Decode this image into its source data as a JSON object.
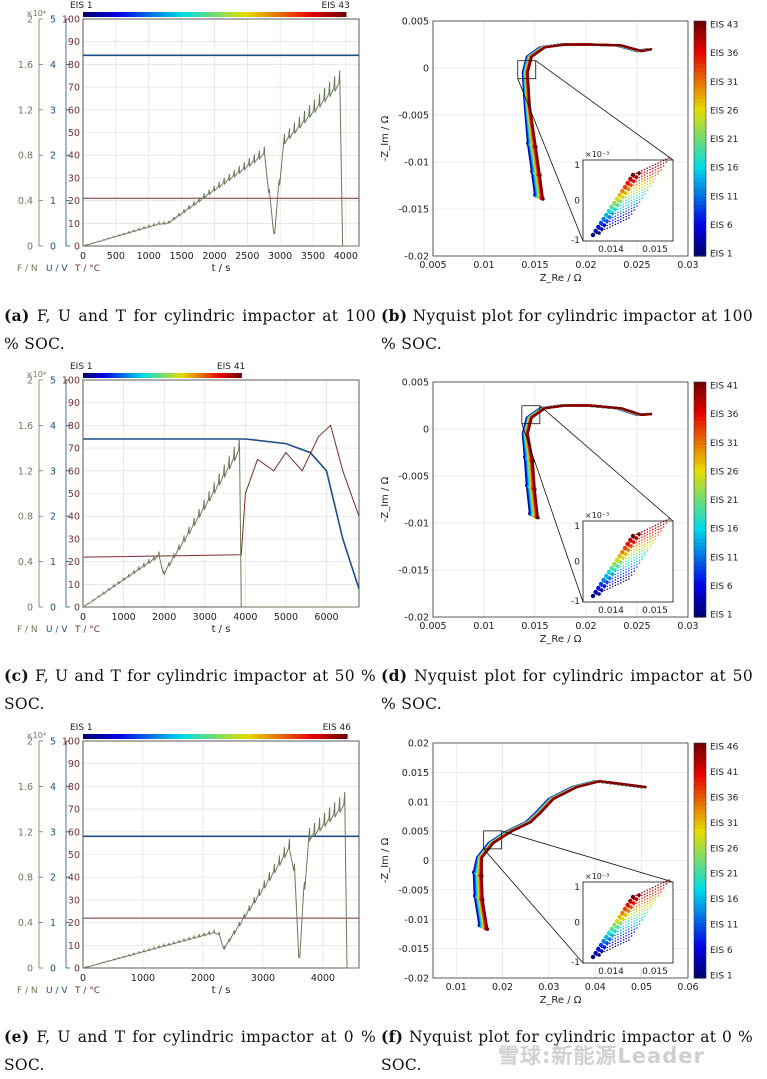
{
  "colors": {
    "force": "#6b7a5a",
    "voltage": "#1f4f8a",
    "temperature": "#7a2d2d",
    "axis": "#333333",
    "grid": "#dddddd"
  },
  "left_axes": {
    "force_label": "F / N",
    "voltage_label": "U / V",
    "temp_label": "T / °C",
    "force_exponent": "×10⁴",
    "force_ticks": [
      "0",
      "0.4",
      "0.8",
      "1.2",
      "1.6",
      "2"
    ],
    "voltage_ticks": [
      "0",
      "1",
      "2",
      "3",
      "4",
      "5"
    ],
    "temp_ticks": [
      "0",
      "10",
      "20",
      "30",
      "40",
      "50",
      "60",
      "70",
      "80",
      "90",
      "100"
    ],
    "xlabel": "t / s"
  },
  "nyquist_axes": {
    "xlabel": "Z_Re / Ω",
    "ylabel": "-Z_Im / Ω",
    "inset_exponent": "×10⁻³"
  },
  "chart_data": [
    {
      "id": "a",
      "type": "line",
      "title": "",
      "x": [
        0,
        4200
      ],
      "xticks": [
        0,
        500,
        1000,
        1500,
        2000,
        2500,
        3000,
        3500,
        4000
      ],
      "xlim": [
        0,
        4200
      ],
      "ylim_temp": [
        0,
        100
      ],
      "ylim_force": [
        0,
        20000
      ],
      "ylim_voltage": [
        0,
        5
      ],
      "eis_first": "EIS 1",
      "eis_last": "EIS 43",
      "eis_range_s": [
        0,
        4000
      ],
      "voltage": {
        "t": [
          0,
          4200
        ],
        "v": [
          4.2,
          4.2
        ]
      },
      "temperature": {
        "t": [
          0,
          4200
        ],
        "v": [
          21,
          21
        ]
      },
      "force_envelope": {
        "t": [
          0,
          1200,
          1250,
          2800,
          2850,
          2950,
          3000,
          3900,
          3950,
          4200
        ],
        "v": [
          0,
          2200,
          2000,
          9000,
          1200,
          1200,
          9500,
          15500,
          0,
          0
        ]
      }
    },
    {
      "id": "b",
      "type": "scatter",
      "title": "",
      "xlim": [
        0.005,
        0.03
      ],
      "ylim": [
        -0.02,
        0.005
      ],
      "xticks": [
        "0.005",
        "0.01",
        "0.015",
        "0.02",
        "0.025",
        "0.03"
      ],
      "yticks": [
        "0.005",
        "0",
        "-0.005",
        "-0.01",
        "-0.015",
        "-0.02"
      ],
      "inset_xticks": [
        "0.014",
        "0.015"
      ],
      "inset_yticks": [
        "1",
        "0",
        "-1"
      ],
      "colorbar": [
        "EIS 43",
        "EIS 36",
        "EIS 31",
        "EIS 26",
        "EIS 21",
        "EIS 16",
        "EIS 11",
        "EIS 6",
        "EIS 1"
      ],
      "curve": {
        "x": [
          0.015,
          0.0147,
          0.0143,
          0.014,
          0.0138,
          0.0142,
          0.0155,
          0.0175,
          0.02,
          0.023,
          0.025,
          0.026
        ],
        "y": [
          -0.0135,
          -0.011,
          -0.008,
          -0.004,
          -0.0005,
          0.0012,
          0.0022,
          0.0025,
          0.0025,
          0.0024,
          0.0018,
          0.002
        ]
      }
    },
    {
      "id": "c",
      "type": "line",
      "title": "",
      "x": [
        0,
        6800
      ],
      "xticks": [
        0,
        1000,
        2000,
        3000,
        4000,
        5000,
        6000
      ],
      "xlim": [
        0,
        6800
      ],
      "ylim_temp": [
        0,
        100
      ],
      "ylim_force": [
        0,
        20000
      ],
      "ylim_voltage": [
        0,
        5
      ],
      "eis_first": "EIS 1",
      "eis_last": "EIS 41",
      "eis_range_s": [
        0,
        3900
      ],
      "voltage": {
        "t": [
          0,
          4000,
          5000,
          5600,
          6000,
          6400,
          6800
        ],
        "v": [
          3.7,
          3.7,
          3.6,
          3.4,
          3.0,
          1.5,
          0.4
        ]
      },
      "temperature": {
        "t": [
          0,
          3900,
          4000,
          4300,
          4700,
          5000,
          5400,
          5800,
          6100,
          6400,
          6800
        ],
        "v": [
          22,
          23,
          50,
          65,
          60,
          68,
          60,
          75,
          80,
          60,
          40
        ]
      },
      "force_envelope": {
        "t": [
          0,
          1900,
          1950,
          3850,
          3900,
          6800
        ],
        "v": [
          0,
          5000,
          3000,
          15000,
          0,
          0
        ]
      }
    },
    {
      "id": "d",
      "type": "scatter",
      "title": "",
      "xlim": [
        0.005,
        0.03
      ],
      "ylim": [
        -0.02,
        0.005
      ],
      "xticks": [
        "0.005",
        "0.01",
        "0.015",
        "0.02",
        "0.025",
        "0.03"
      ],
      "yticks": [
        "0.005",
        "0",
        "-0.005",
        "-0.01",
        "-0.015",
        "-0.02"
      ],
      "inset_xticks": [
        "0.014",
        "0.015"
      ],
      "inset_yticks": [
        "1",
        "0",
        "-1"
      ],
      "colorbar": [
        "EIS 41",
        "EIS 36",
        "EIS 31",
        "EIS 26",
        "EIS 21",
        "EIS 16",
        "EIS 11",
        "EIS 6",
        "EIS 1"
      ],
      "curve": {
        "x": [
          0.0145,
          0.0142,
          0.014,
          0.0138,
          0.0142,
          0.0155,
          0.0175,
          0.02,
          0.023,
          0.025,
          0.026
        ],
        "y": [
          -0.009,
          -0.006,
          -0.003,
          -0.0005,
          0.0012,
          0.0022,
          0.0025,
          0.0025,
          0.0022,
          0.0015,
          0.0016
        ]
      }
    },
    {
      "id": "e",
      "type": "line",
      "title": "",
      "x": [
        0,
        4600
      ],
      "xticks": [
        0,
        1000,
        2000,
        3000,
        4000
      ],
      "xlim": [
        0,
        4600
      ],
      "ylim_temp": [
        0,
        100
      ],
      "ylim_force": [
        0,
        20000
      ],
      "ylim_voltage": [
        0,
        5
      ],
      "eis_first": "EIS 1",
      "eis_last": "EIS 46",
      "eis_range_s": [
        0,
        4400
      ],
      "voltage": {
        "t": [
          0,
          4600
        ],
        "v": [
          2.9,
          2.9
        ]
      },
      "temperature": {
        "t": [
          0,
          4600
        ],
        "v": [
          22,
          22
        ]
      },
      "force_envelope": {
        "t": [
          0,
          2250,
          2300,
          3500,
          3550,
          3650,
          3700,
          4350,
          4400,
          4600
        ],
        "v": [
          0,
          3500,
          1500,
          12000,
          1000,
          1000,
          12000,
          15500,
          0,
          0
        ]
      }
    },
    {
      "id": "f",
      "type": "scatter",
      "title": "",
      "xlim": [
        0.005,
        0.06
      ],
      "ylim": [
        -0.02,
        0.02
      ],
      "xticks": [
        "0.01",
        "0.02",
        "0.03",
        "0.04",
        "0.05",
        "0.06"
      ],
      "yticks": [
        "0.02",
        "0.015",
        "0.01",
        "0.005",
        "0",
        "-0.005",
        "-0.01",
        "-0.015",
        "-0.02"
      ],
      "inset_xticks": [
        "0.014",
        "0.015"
      ],
      "inset_yticks": [
        "1",
        "0",
        "-1"
      ],
      "colorbar": [
        "EIS 46",
        "EIS 41",
        "EIS 36",
        "EIS 31",
        "EIS 26",
        "EIS 21",
        "EIS 16",
        "EIS 11",
        "EIS 6",
        "EIS 1"
      ],
      "curve": {
        "x": [
          0.015,
          0.014,
          0.0138,
          0.0145,
          0.017,
          0.021,
          0.025,
          0.027,
          0.03,
          0.035,
          0.04,
          0.045,
          0.05
        ],
        "y": [
          -0.011,
          -0.006,
          -0.002,
          0.0005,
          0.003,
          0.005,
          0.0065,
          0.008,
          0.0105,
          0.0125,
          0.0135,
          0.013,
          0.0125
        ]
      }
    }
  ],
  "captions": [
    {
      "id": "a",
      "label": "(a)",
      "text": "F, U and T for cylindric impactor at 100 % SOC."
    },
    {
      "id": "b",
      "label": "(b)",
      "text": "Nyquist plot for cylindric impactor at 100 % SOC."
    },
    {
      "id": "c",
      "label": "(c)",
      "text": "F, U and T for cylindric impactor at 50 % SOC."
    },
    {
      "id": "d",
      "label": "(d)",
      "text": "Nyquist plot for cylindric impactor at 50 % SOC."
    },
    {
      "id": "e",
      "label": "(e)",
      "text": "F, U and T for cylindric impactor at 0 % SOC."
    },
    {
      "id": "f",
      "label": "(f)",
      "text": "Nyquist plot for cylindric impactor at 0 % SOC."
    }
  ],
  "watermark": "雪球:新能源Leader"
}
